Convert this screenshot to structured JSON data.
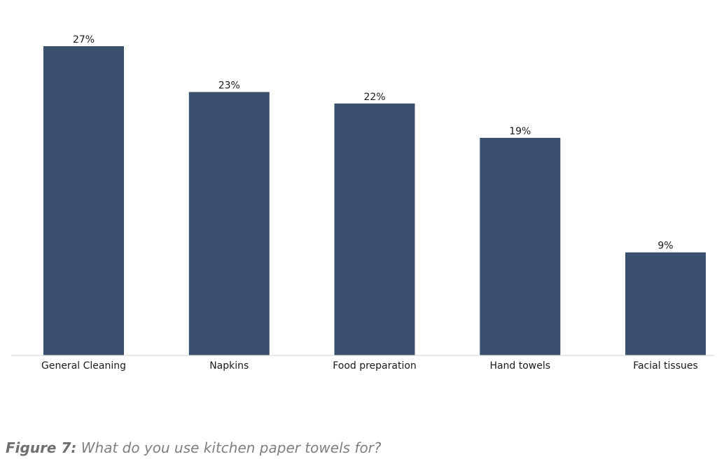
{
  "chart_data": {
    "type": "bar",
    "categories": [
      "General Cleaning",
      "Napkins",
      "Food preparation",
      "Hand towels",
      "Facial tissues"
    ],
    "values": [
      27,
      23,
      22,
      19,
      9
    ],
    "value_labels": [
      "27%",
      "23%",
      "22%",
      "19%",
      "9%"
    ],
    "title": "",
    "xlabel": "",
    "ylabel": "",
    "ylim": [
      0,
      30
    ],
    "grid": false,
    "legend": "none",
    "bar_color": "#3b4f6e"
  },
  "caption": {
    "label": "Figure 7:",
    "text": " What do you use kitchen paper towels for?"
  }
}
